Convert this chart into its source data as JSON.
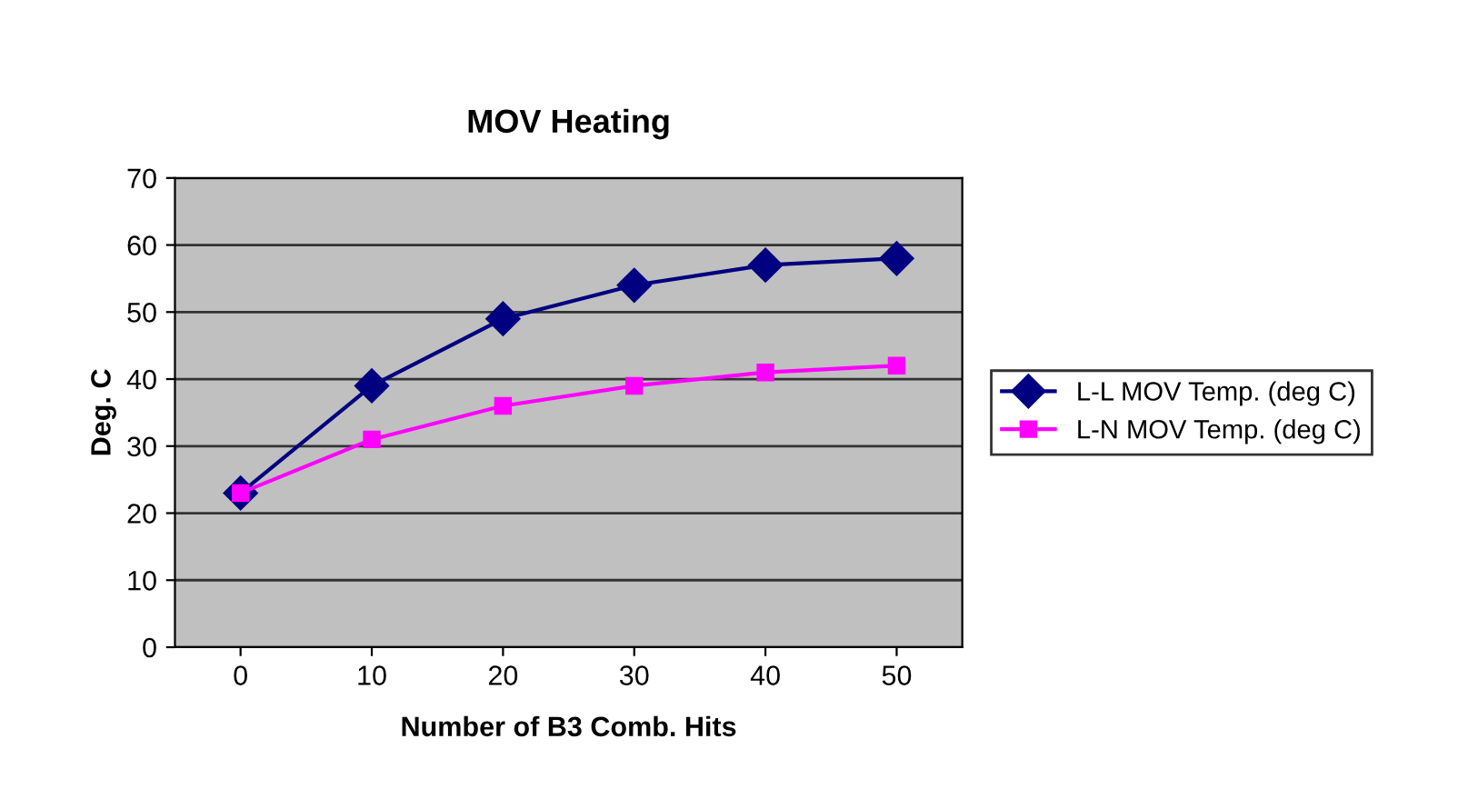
{
  "chart_data": {
    "type": "line",
    "title": "MOV Heating",
    "xlabel": "Number of B3 Comb. Hits",
    "ylabel": "Deg. C",
    "categories": [
      "0",
      "10",
      "20",
      "30",
      "40",
      "50"
    ],
    "series": [
      {
        "name": "L-L MOV Temp. (deg C)",
        "color": "#000080",
        "marker": "diamond",
        "values": [
          23,
          39,
          49,
          54,
          57,
          58
        ]
      },
      {
        "name": "L-N MOV Temp. (deg C)",
        "color": "#ff00ff",
        "marker": "square",
        "values": [
          23,
          31,
          36,
          39,
          41,
          42
        ]
      }
    ],
    "ylim": [
      0,
      70
    ],
    "yticks": [
      0,
      10,
      20,
      30,
      40,
      50,
      60,
      70
    ],
    "grid": "y",
    "legend": "right",
    "line_style": "solid"
  }
}
